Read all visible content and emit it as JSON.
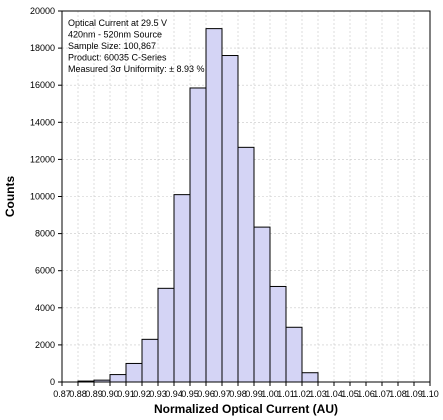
{
  "chart_data": {
    "type": "bar",
    "xlabel": "Normalized Optical Current (AU)",
    "ylabel": "Counts",
    "xlim": [
      0.87,
      1.1
    ],
    "ylim": [
      0,
      20000
    ],
    "x_ticks": [
      "0.87",
      "0.88",
      "0.89",
      "0.90",
      "0.91",
      "0.92",
      "0.93",
      "0.94",
      "0.95",
      "0.96",
      "0.97",
      "0.98",
      "0.99",
      "1.00",
      "1.01",
      "1.02",
      "1.03",
      "1.04",
      "1.05",
      "1.06",
      "1.07",
      "1.08",
      "1.09",
      "1.10"
    ],
    "y_ticks": [
      "0",
      "2000",
      "4000",
      "6000",
      "8000",
      "10000",
      "12000",
      "14000",
      "16000",
      "18000",
      "20000"
    ],
    "grid": true,
    "bin_width": 0.01,
    "bins": [
      {
        "start": 0.88,
        "count": 50
      },
      {
        "start": 0.89,
        "count": 100
      },
      {
        "start": 0.9,
        "count": 400
      },
      {
        "start": 0.91,
        "count": 1000
      },
      {
        "start": 0.92,
        "count": 2300
      },
      {
        "start": 0.93,
        "count": 5050
      },
      {
        "start": 0.94,
        "count": 10100
      },
      {
        "start": 0.95,
        "count": 15850
      },
      {
        "start": 0.96,
        "count": 19050
      },
      {
        "start": 0.97,
        "count": 17600
      },
      {
        "start": 0.98,
        "count": 12650
      },
      {
        "start": 0.99,
        "count": 8350
      },
      {
        "start": 1.0,
        "count": 5150
      },
      {
        "start": 1.01,
        "count": 2950
      },
      {
        "start": 1.02,
        "count": 500
      }
    ],
    "bar_color": "#d4d4f5",
    "bar_stroke": "#000000",
    "annotation_lines": [
      "Optical Current at 29.5 V",
      "420nm - 520nm Source",
      "Sample Size: 100,867",
      "Product: 60035 C-Series",
      "Measured 3σ Uniformity: ± 8.93 %"
    ]
  }
}
